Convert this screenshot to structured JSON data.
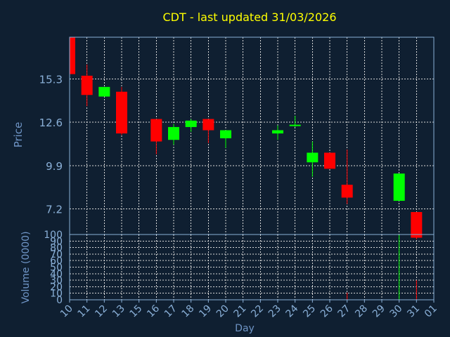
{
  "chart_data": {
    "type": "candlestick",
    "title": "CDT - last updated 31/03/2026",
    "xlabel": "Day",
    "price_panel": {
      "ylabel": "Price",
      "yticks": [
        "15.3",
        "12.6",
        "9.9",
        "7.2"
      ],
      "ylim": [
        5.6,
        17.9
      ]
    },
    "volume_panel": {
      "ylabel": "Volume (0000)",
      "yticks": [
        "0",
        "10",
        "20",
        "30",
        "40",
        "50",
        "60",
        "70",
        "80",
        "90",
        "100"
      ],
      "ylim": [
        0,
        100
      ]
    },
    "x_ticks": [
      "10",
      "11",
      "12",
      "13",
      "15",
      "16",
      "17",
      "18",
      "19",
      "20",
      "21",
      "22",
      "23",
      "24",
      "25",
      "26",
      "27",
      "28",
      "29",
      "30",
      "31",
      "01"
    ],
    "candles": [
      {
        "day": "10",
        "open": 17.9,
        "high": 17.9,
        "low": 15.5,
        "close": 15.6,
        "volume": 0
      },
      {
        "day": "11",
        "open": 15.5,
        "high": 16.2,
        "low": 13.6,
        "close": 14.3,
        "volume": 0
      },
      {
        "day": "12",
        "open": 14.2,
        "high": 14.8,
        "low": 14.2,
        "close": 14.8,
        "volume": 0
      },
      {
        "day": "13",
        "open": 14.5,
        "high": 14.8,
        "low": 11.8,
        "close": 11.9,
        "volume": 0
      },
      {
        "day": "16",
        "open": 12.8,
        "high": 12.8,
        "low": 10.6,
        "close": 11.4,
        "volume": 0
      },
      {
        "day": "17",
        "open": 11.5,
        "high": 12.5,
        "low": 11.2,
        "close": 12.3,
        "volume": 0
      },
      {
        "day": "18",
        "open": 12.3,
        "high": 12.8,
        "low": 12.0,
        "close": 12.7,
        "volume": 0
      },
      {
        "day": "19",
        "open": 12.8,
        "high": 12.8,
        "low": 11.3,
        "close": 12.1,
        "volume": 0
      },
      {
        "day": "20",
        "open": 11.6,
        "high": 12.1,
        "low": 11.0,
        "close": 12.1,
        "volume": 0
      },
      {
        "day": "23",
        "open": 11.9,
        "high": 12.4,
        "low": 11.5,
        "close": 12.1,
        "volume": 0
      },
      {
        "day": "24",
        "open": 12.4,
        "high": 13.0,
        "low": 12.3,
        "close": 12.4,
        "volume": 0
      },
      {
        "day": "25",
        "open": 10.1,
        "high": 11.4,
        "low": 9.2,
        "close": 10.7,
        "volume": 0
      },
      {
        "day": "26",
        "open": 10.7,
        "high": 10.7,
        "low": 9.7,
        "close": 9.7,
        "volume": 0
      },
      {
        "day": "27",
        "open": 8.7,
        "high": 10.9,
        "low": 7.5,
        "close": 7.9,
        "volume": 11
      },
      {
        "day": "30",
        "open": 7.7,
        "high": 9.4,
        "low": 7.7,
        "close": 9.4,
        "volume": 100
      },
      {
        "day": "31",
        "open": 7.0,
        "high": 7.0,
        "low": 5.3,
        "close": 5.4,
        "volume": 30
      }
    ],
    "colors": {
      "background": "#0f1f31",
      "axis": "#8ab0d8",
      "grid": "#d8d8d8",
      "title": "#ffff00",
      "label": "#6f95c6",
      "tick_text": "#8ab0d8",
      "up": "#00ff00",
      "down": "#ff0000"
    }
  }
}
